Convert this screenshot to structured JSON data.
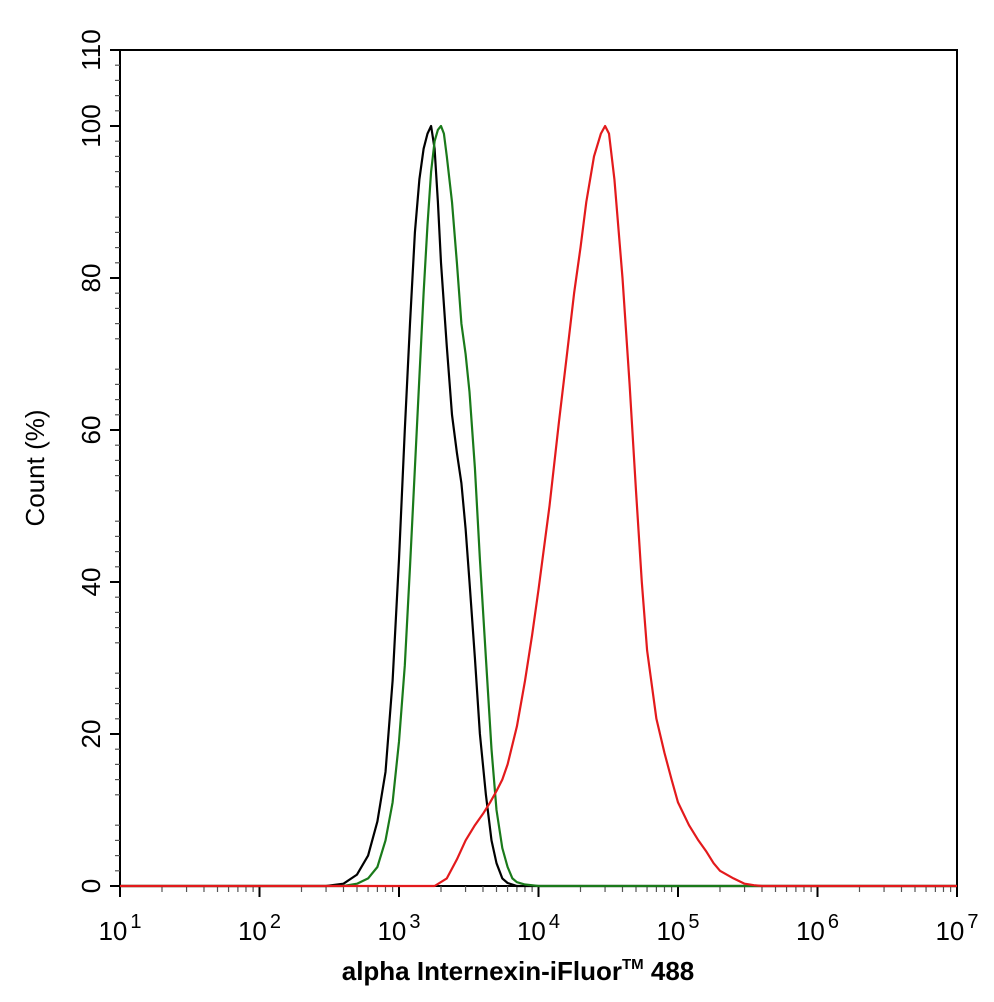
{
  "chart_data": {
    "type": "line",
    "title": "",
    "xlabel": "alpha Internexin-iFluor",
    "xlabel_tm": "TM",
    "xlabel_tail": " 488",
    "ylabel": "Count  (%)",
    "x_scale": "log",
    "xlim": [
      10,
      10000000
    ],
    "ylim": [
      0,
      110
    ],
    "x_ticks": [
      {
        "value": 10,
        "base": "10",
        "exp": "1"
      },
      {
        "value": 100,
        "base": "10",
        "exp": "2"
      },
      {
        "value": 1000,
        "base": "10",
        "exp": "3"
      },
      {
        "value": 10000,
        "base": "10",
        "exp": "4"
      },
      {
        "value": 100000,
        "base": "10",
        "exp": "5"
      },
      {
        "value": 1000000,
        "base": "10",
        "exp": "6"
      },
      {
        "value": 10000000,
        "base": "10",
        "exp": "7"
      }
    ],
    "y_ticks": [
      0,
      20,
      40,
      60,
      80,
      100,
      110
    ],
    "grid": false,
    "legend": "none",
    "series": [
      {
        "color": "#000000",
        "x": [
          10,
          300,
          400,
          500,
          600,
          700,
          800,
          900,
          1000,
          1100,
          1200,
          1300,
          1400,
          1500,
          1600,
          1700,
          1800,
          1900,
          2000,
          2200,
          2400,
          2600,
          2800,
          3000,
          3200,
          3500,
          3800,
          4200,
          4600,
          5000,
          5500,
          6000,
          7000,
          10000000
        ],
        "y": [
          0,
          0,
          0.3,
          1.5,
          4,
          8.5,
          15,
          27,
          43,
          60,
          74,
          86,
          93,
          97,
          99,
          100,
          97,
          90,
          82,
          71,
          62,
          57,
          53,
          47,
          40,
          30,
          20,
          12,
          6,
          3,
          1,
          0.4,
          0,
          0
        ]
      },
      {
        "color": "#1a7a1a",
        "x": [
          10,
          400,
          500,
          600,
          700,
          800,
          900,
          1000,
          1100,
          1200,
          1300,
          1400,
          1500,
          1600,
          1700,
          1800,
          1900,
          2000,
          2100,
          2200,
          2400,
          2600,
          2800,
          3000,
          3200,
          3500,
          3800,
          4200,
          4600,
          5000,
          5500,
          6000,
          6500,
          7000,
          8000,
          10000,
          10000000
        ],
        "y": [
          0,
          0,
          0.3,
          1,
          2.5,
          6,
          11,
          19,
          29,
          42,
          55,
          67,
          78,
          87,
          94,
          98,
          99.5,
          100,
          99,
          96,
          90,
          82,
          74,
          70,
          65,
          55,
          43,
          30,
          18,
          10,
          5,
          2.5,
          1,
          0.5,
          0.2,
          0,
          0
        ]
      },
      {
        "color": "#e31a1c",
        "x": [
          10,
          1800,
          2200,
          2600,
          3000,
          3500,
          4000,
          4500,
          5000,
          5500,
          6000,
          7000,
          8000,
          9000,
          10000,
          12000,
          14000,
          16000,
          18000,
          20000,
          22000,
          25000,
          28000,
          30000,
          32000,
          35000,
          40000,
          45000,
          50000,
          55000,
          60000,
          70000,
          80000,
          90000,
          100000,
          120000,
          140000,
          160000,
          180000,
          200000,
          250000,
          300000,
          350000,
          400000,
          10000000
        ],
        "y": [
          0,
          0,
          1,
          3.5,
          6,
          8,
          9.5,
          11,
          12.5,
          14,
          16,
          21,
          27,
          33,
          39,
          50,
          61,
          70,
          78,
          84,
          90,
          96,
          99,
          100,
          99,
          93,
          80,
          66,
          52,
          40,
          31,
          22,
          17.5,
          14,
          11,
          8,
          6,
          4.5,
          3,
          2,
          1,
          0.3,
          0.1,
          0,
          0
        ]
      }
    ]
  }
}
